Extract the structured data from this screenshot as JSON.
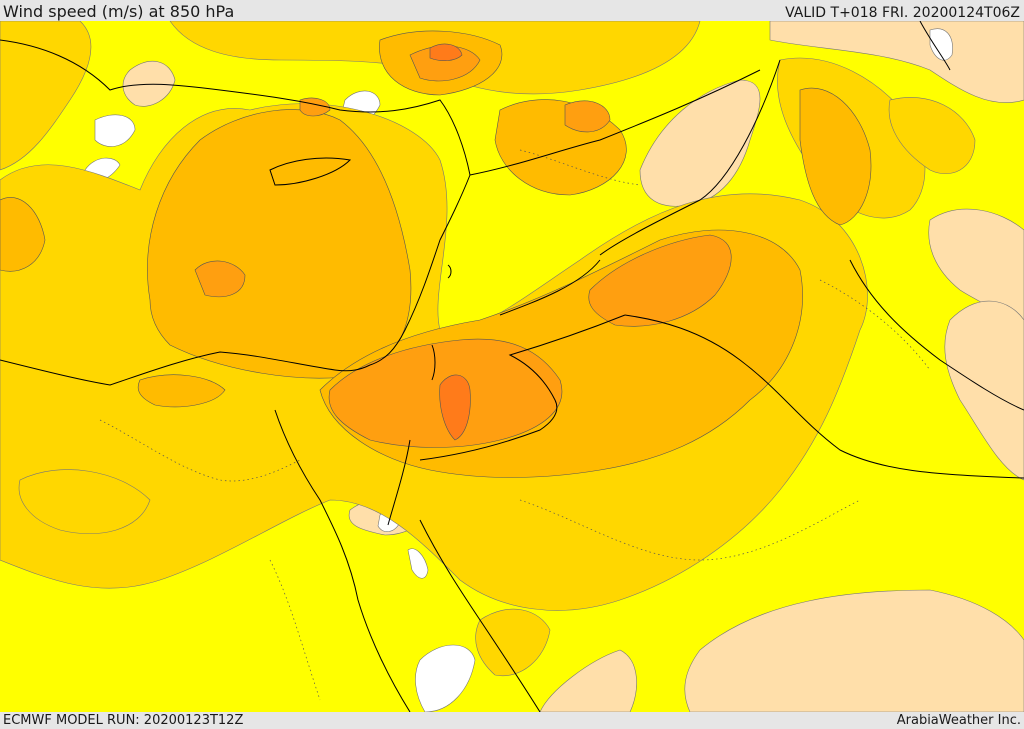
{
  "header": {
    "title": "Wind speed (m/s) at 850 hPa",
    "valid": "VALID T+018 FRI. 20200124T06Z"
  },
  "footer": {
    "model_run": "ECMWF MODEL RUN: 20200123T12Z",
    "credit": "ArabiaWeather Inc."
  },
  "map": {
    "variable": "wind speed at 850 hPa",
    "units": "m/s",
    "colors": {
      "calm": "#ffffff",
      "light": "#ffdfaa",
      "moderate": "#ffff00",
      "fresh": "#ffd700",
      "strong": "#ffbb00",
      "very_strong": "#ff9f10",
      "peak": "#ff7b1a",
      "borders": "#000000",
      "contour_lines": "#555555"
    }
  }
}
